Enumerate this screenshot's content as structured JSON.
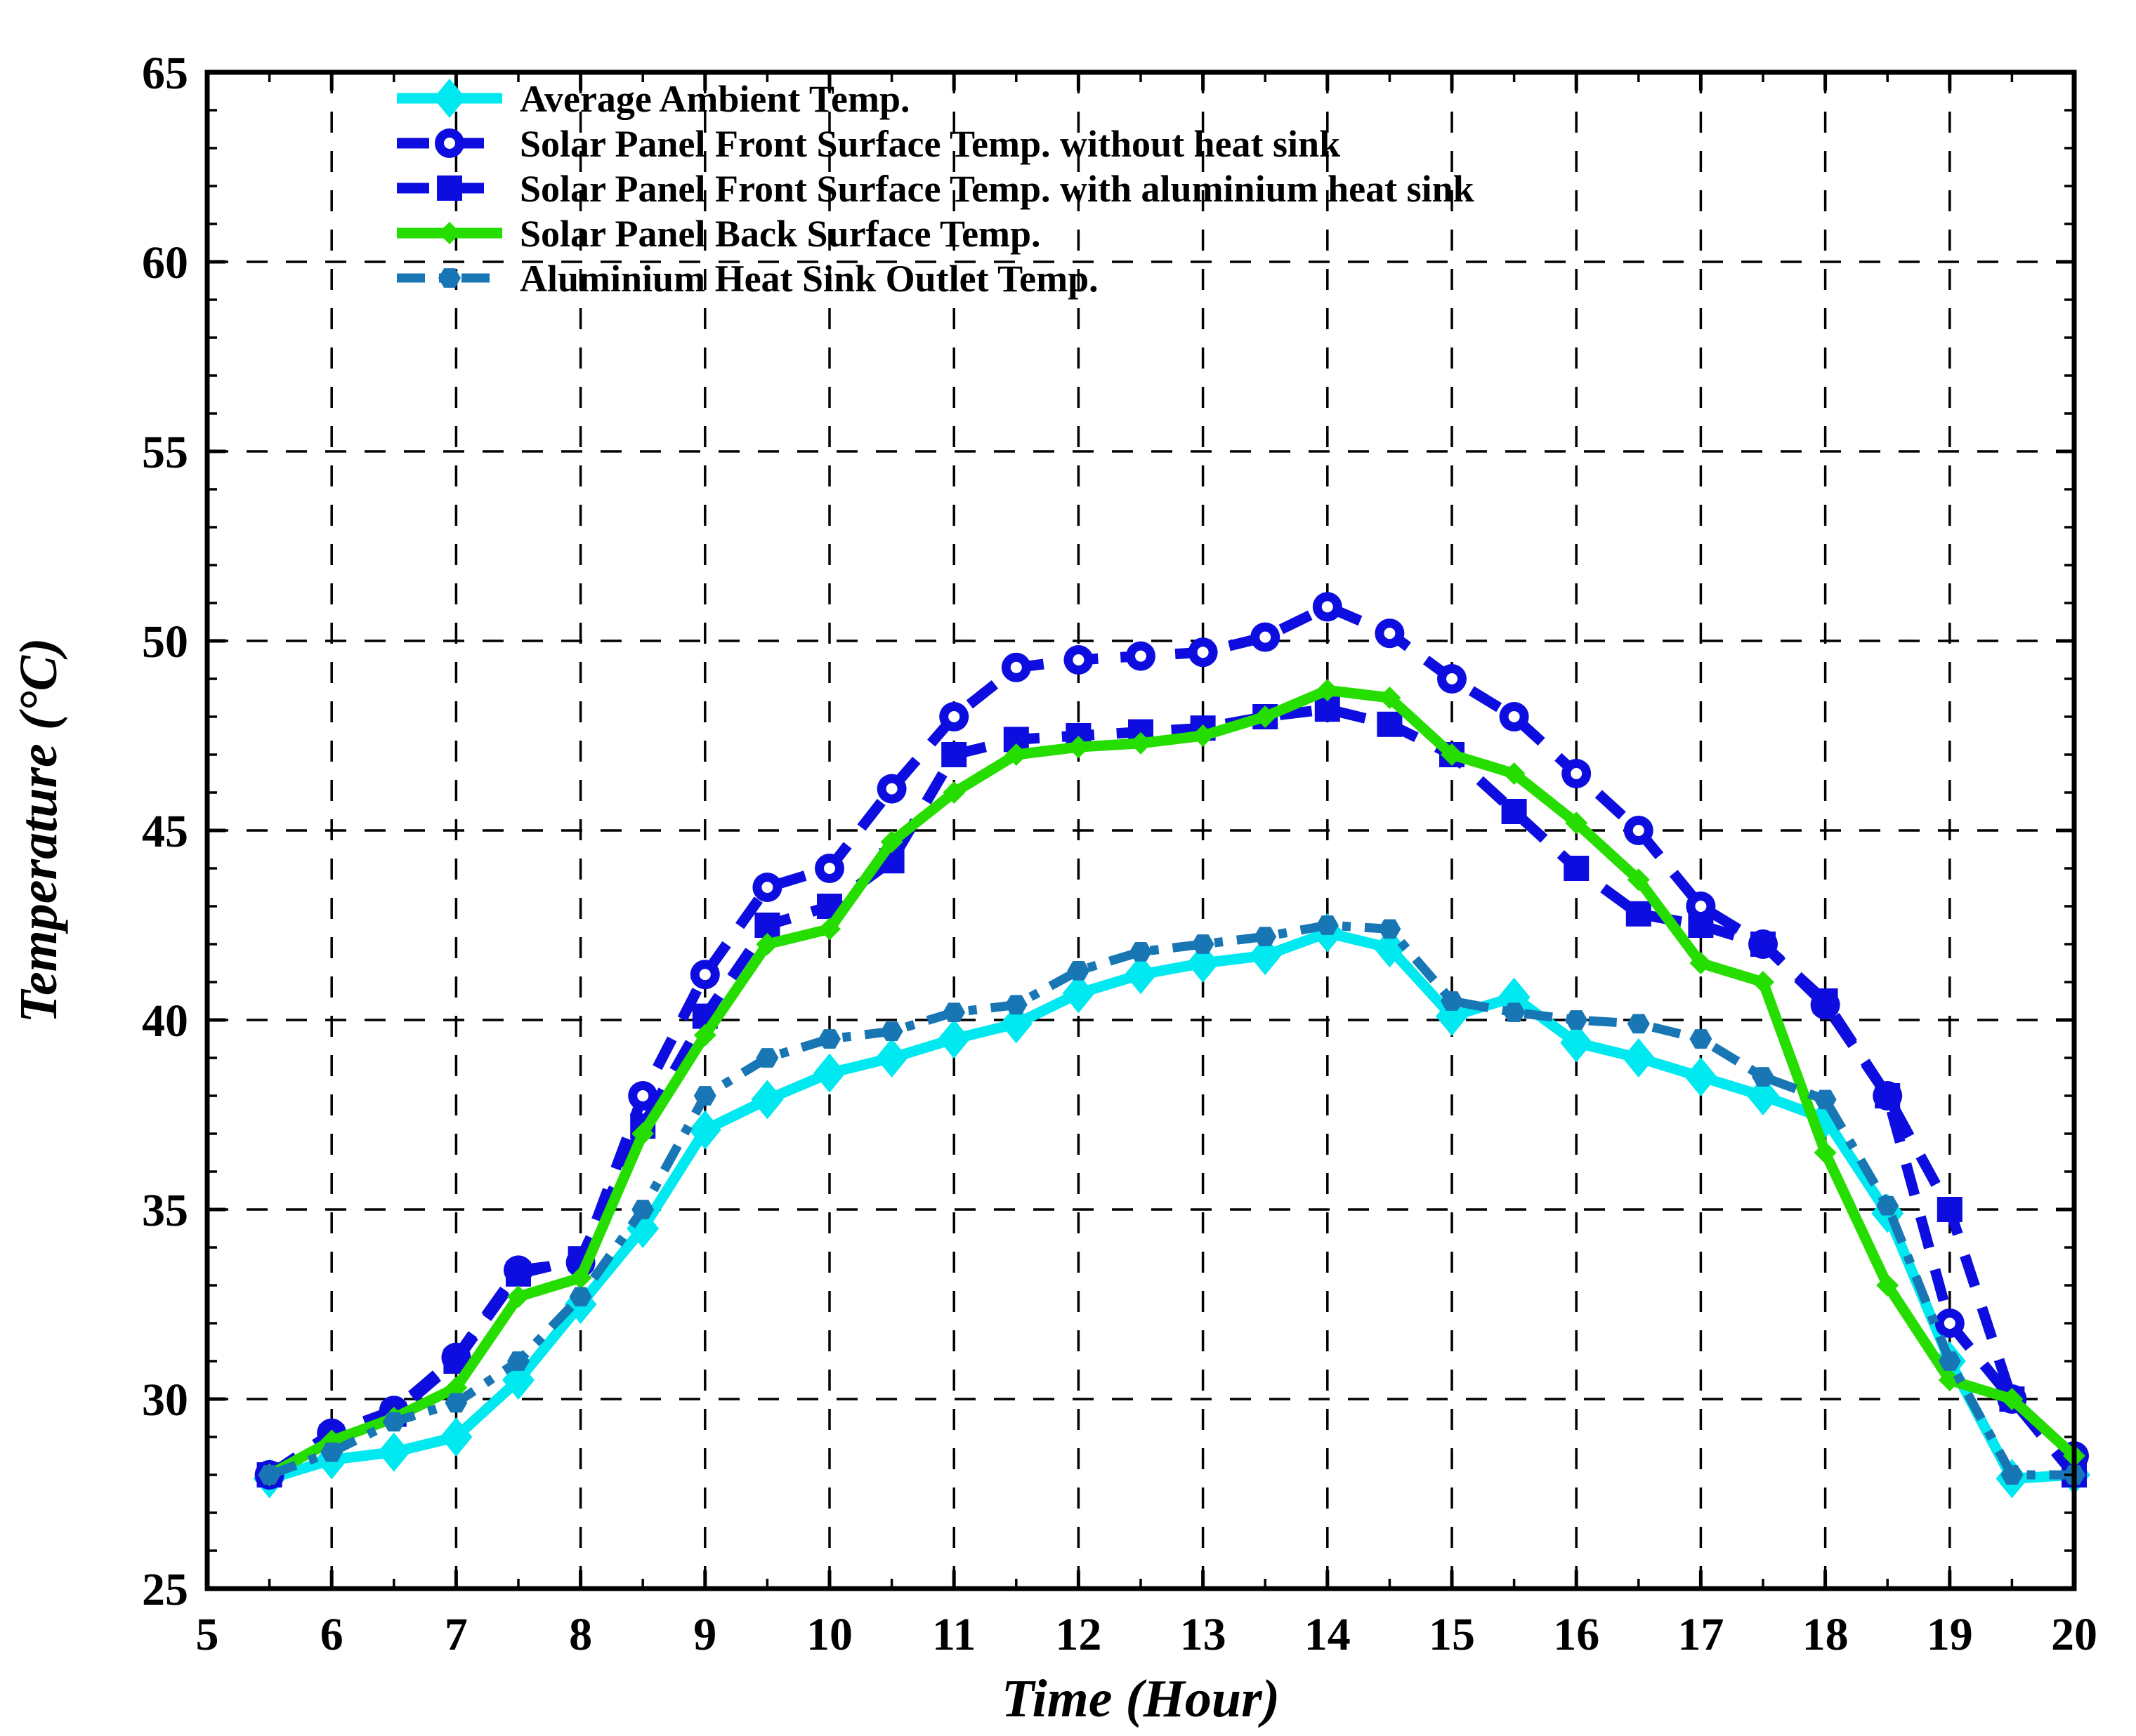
{
  "chart_data": {
    "type": "line",
    "title": "",
    "xlabel": "Time (Hour)",
    "ylabel": "Temperature (°C)",
    "xlim": [
      5,
      20
    ],
    "ylim": [
      25,
      65
    ],
    "xticks": [
      5,
      6,
      7,
      8,
      9,
      10,
      11,
      12,
      13,
      14,
      15,
      16,
      17,
      18,
      19,
      20
    ],
    "yticks": [
      25,
      30,
      35,
      40,
      45,
      50,
      55,
      60,
      65
    ],
    "x_minor_step": 0.5,
    "y_minor_step": 1,
    "grid": "dashed",
    "grid_color": "#000000",
    "legend_position": "top-left",
    "x": [
      5.5,
      6,
      6.5,
      7,
      7.5,
      8,
      8.5,
      9,
      9.5,
      10,
      10.5,
      11,
      11.5,
      12,
      12.5,
      13,
      13.5,
      14,
      14.5,
      15,
      15.5,
      16,
      16.5,
      17,
      17.5,
      18,
      18.5,
      19,
      19.5,
      20
    ],
    "series": [
      {
        "name": "Average Ambient Temp.",
        "color": "#00E8F0",
        "line": "solid",
        "marker": "diamond",
        "values": [
          27.9,
          28.4,
          28.6,
          29.0,
          30.5,
          32.5,
          34.5,
          37.1,
          37.9,
          38.6,
          39.0,
          39.5,
          39.9,
          40.7,
          41.2,
          41.5,
          41.7,
          42.3,
          41.9,
          40.1,
          40.6,
          39.4,
          39.0,
          38.5,
          38.0,
          37.4,
          34.9,
          31.0,
          27.9,
          28.0
        ]
      },
      {
        "name": "Solar Panel Front Surface Temp. without heat sink",
        "color": "#0D0DE0",
        "line": "dashed",
        "marker": "circle",
        "values": [
          28.0,
          29.1,
          29.7,
          31.1,
          33.4,
          33.6,
          38.0,
          41.2,
          43.5,
          44.0,
          46.1,
          48.0,
          49.3,
          49.5,
          49.6,
          49.7,
          50.1,
          50.9,
          50.2,
          49.0,
          48.0,
          46.5,
          45.0,
          43.0,
          42.0,
          40.4,
          38.0,
          32.0,
          30.0,
          28.5
        ]
      },
      {
        "name": "Solar Panel Front Surface Temp. with aluminium heat sink",
        "color": "#0D0DE0",
        "line": "dashed",
        "marker": "square",
        "values": [
          28.0,
          29.0,
          29.6,
          31.0,
          33.3,
          33.7,
          37.2,
          40.1,
          42.5,
          43.0,
          44.2,
          47.0,
          47.4,
          47.5,
          47.6,
          47.7,
          48.0,
          48.2,
          47.8,
          47.0,
          45.5,
          44.0,
          42.8,
          42.5,
          42.0,
          40.5,
          38.0,
          35.0,
          30.0,
          28.0
        ]
      },
      {
        "name": "Solar Panel Back Surface Temp.",
        "color": "#26DD00",
        "line": "solid",
        "marker": "dot",
        "values": [
          28.0,
          28.9,
          29.5,
          30.3,
          32.7,
          33.2,
          37.0,
          39.6,
          42.0,
          42.4,
          44.7,
          46.0,
          47.0,
          47.2,
          47.3,
          47.5,
          48.0,
          48.7,
          48.5,
          47.0,
          46.5,
          45.2,
          43.7,
          41.5,
          41.0,
          36.5,
          33.0,
          30.5,
          30.0,
          28.5
        ]
      },
      {
        "name": "Aluminium Heat Sink Outlet Temp.",
        "color": "#1976B4",
        "line": "dashdot",
        "marker": "hex",
        "values": [
          28.0,
          28.6,
          29.4,
          29.9,
          31.0,
          32.7,
          35.0,
          38.0,
          39.0,
          39.5,
          39.7,
          40.2,
          40.4,
          41.3,
          41.8,
          42.0,
          42.2,
          42.5,
          42.4,
          40.5,
          40.2,
          40.0,
          39.9,
          39.5,
          38.5,
          37.9,
          35.1,
          31.0,
          28.0,
          28.0
        ]
      }
    ]
  }
}
